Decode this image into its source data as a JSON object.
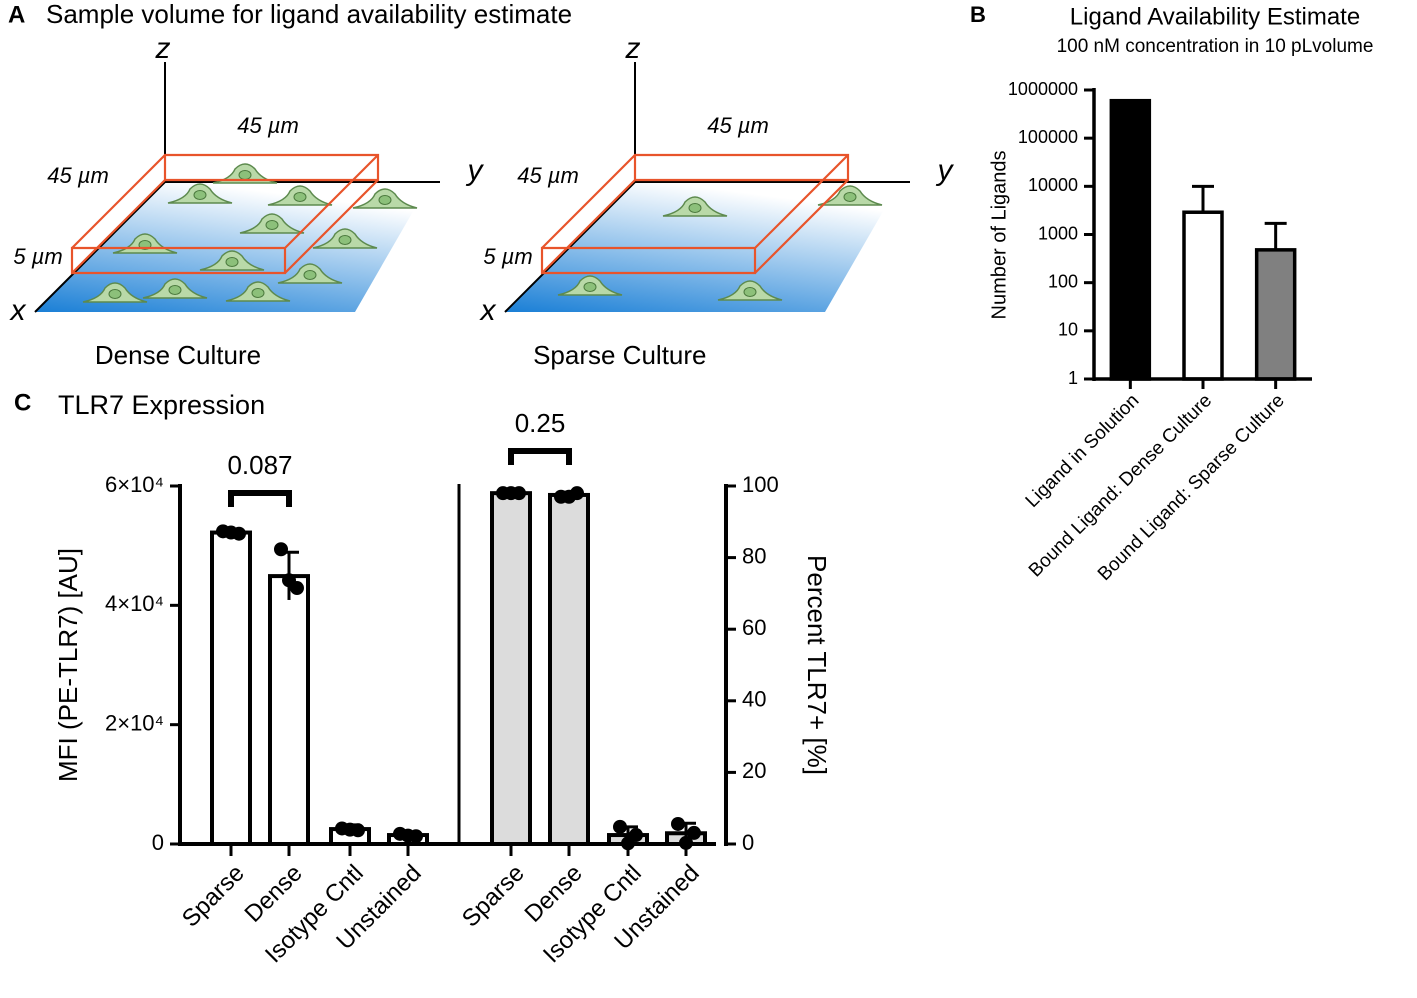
{
  "panel_a": {
    "label": "A",
    "title": "Sample volume for ligand availability estimate",
    "diagrams": [
      {
        "caption": "Dense Culture",
        "x_axis": "x",
        "y_axis": "y",
        "z_axis": "z",
        "width": "45 µm",
        "depth": "45 µm",
        "height": "5 µm"
      },
      {
        "caption": "Sparse Culture",
        "x_axis": "x",
        "y_axis": "y",
        "z_axis": "z",
        "width": "45 µm",
        "depth": "45 µm",
        "height": "5 µm"
      }
    ]
  },
  "chart_data": [
    {
      "type": "bar",
      "label": "B",
      "title": "Ligand Availability Estimate",
      "subtitle": "100 nM concentration in 10 pLvolume",
      "ylabel": "Number of Ligands",
      "log_scale": true,
      "categories": [
        "Ligand in Solution",
        "Bound Ligand: Dense Culture",
        "Bound Ligand: Sparse Culture"
      ],
      "values": [
        600000,
        2900,
        480
      ],
      "errors": [
        0,
        7100,
        1220
      ],
      "colors": [
        "#000000",
        "#ffffff",
        "#808080"
      ],
      "ylim": [
        1,
        1000000
      ],
      "yticks": [
        1,
        10,
        100,
        1000,
        10000,
        100000,
        1000000
      ]
    },
    {
      "type": "dual_bar",
      "label": "C",
      "title": "TLR7 Expression",
      "ylabel": "MFI (PE-TLR7) [AU]",
      "y2label": "Percent TLR7+ [%]",
      "ylim": [
        0,
        60000
      ],
      "yticks": [
        0,
        {
          "value": 20000,
          "label": "2×10⁴"
        },
        {
          "value": 40000,
          "label": "4×10⁴"
        },
        {
          "value": 60000,
          "label": "6×10⁴"
        }
      ],
      "y2lim": [
        0,
        100
      ],
      "y2ticks": [
        0,
        20,
        40,
        60,
        80,
        100
      ],
      "annotations": [
        {
          "text": "0.087"
        },
        {
          "text": "0.25"
        }
      ],
      "series": [
        {
          "categories": [
            "Sparse",
            "Dense",
            "Isotype Cntl",
            "Unstained"
          ],
          "values": [
            52200,
            44900,
            2500,
            1500
          ],
          "errors": [
            400,
            4000,
            700,
            400
          ],
          "points": [
            [
              52400,
              52200,
              52000
            ],
            [
              49400,
              44200,
              42900
            ],
            [
              2600,
              2400,
              2300
            ],
            [
              1700,
              1400,
              1300
            ]
          ],
          "color": "#ffffff",
          "axis": "y"
        },
        {
          "categories": [
            "Sparse",
            "Dense",
            "Isotype Cntl",
            "Unstained"
          ],
          "values": [
            98,
            97.5,
            2.5,
            3
          ],
          "errors": [
            0.5,
            0.8,
            2.3,
            2.8
          ],
          "points": [
            [
              98,
              98,
              98
            ],
            [
              97,
              97,
              98
            ],
            [
              4.8,
              0.2,
              2.5
            ],
            [
              5.6,
              0.3,
              3.1
            ]
          ],
          "color": "#dcdcdc",
          "axis": "y2"
        }
      ]
    }
  ]
}
